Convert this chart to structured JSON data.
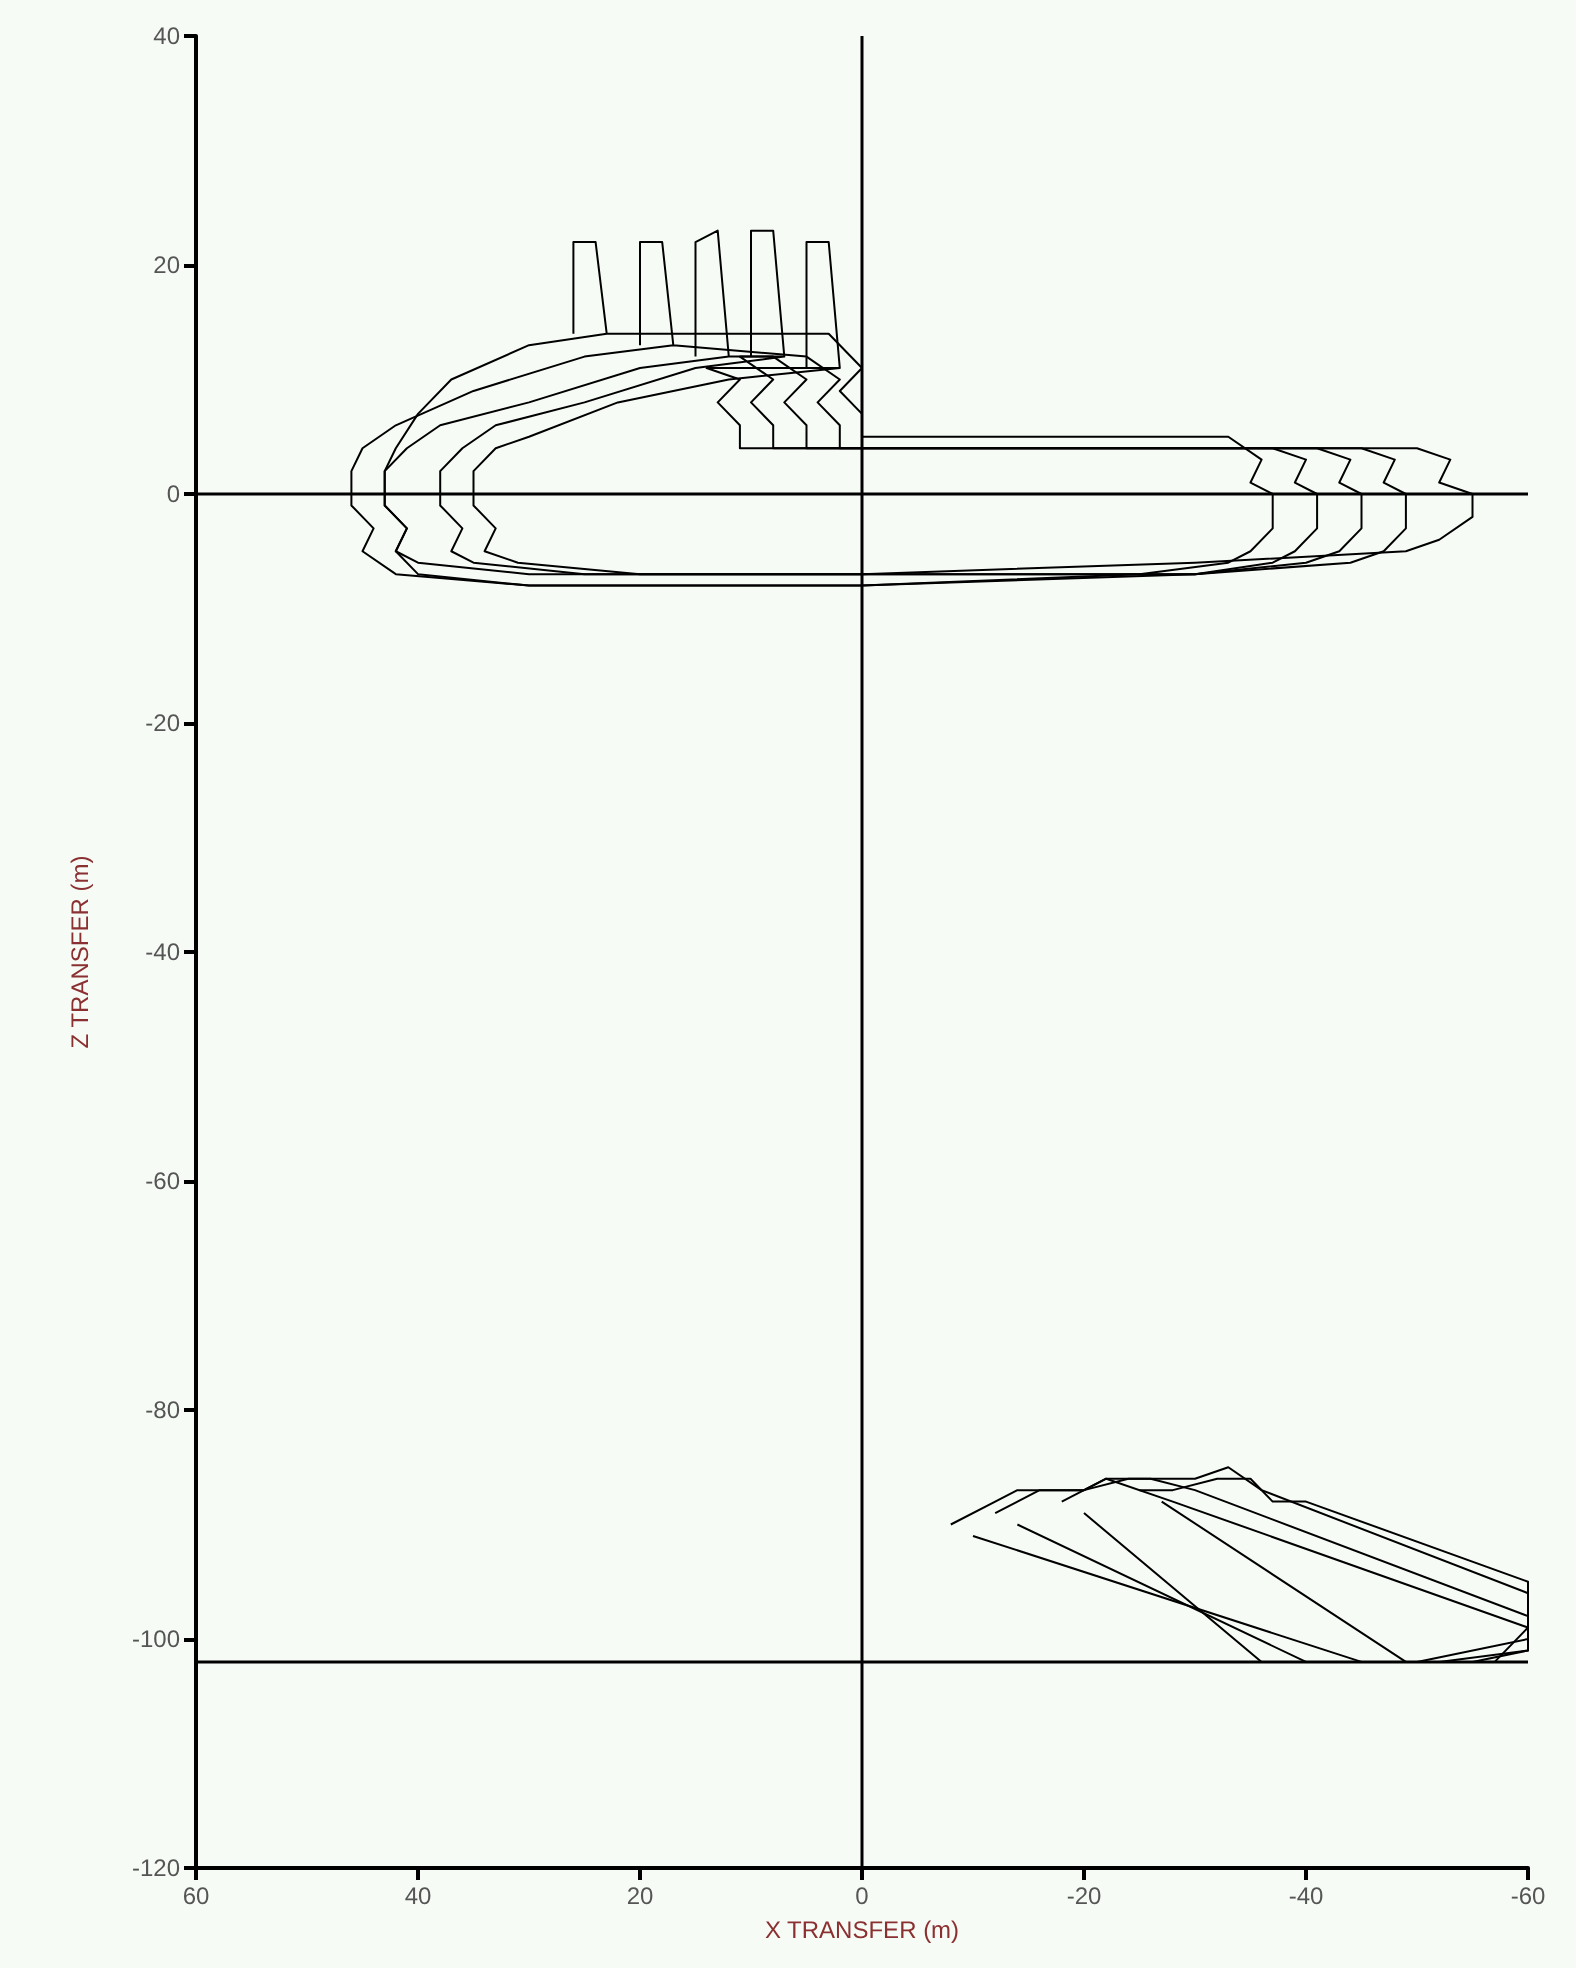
{
  "chart_data": {
    "type": "line",
    "xlabel": "X TRANSFER (m)",
    "ylabel": "Z TRANSFER (m)",
    "xlim": [
      60,
      -60
    ],
    "xticks": [
      60,
      40,
      20,
      0,
      -20,
      -40,
      -60
    ],
    "ylim": [
      -120,
      40
    ],
    "yticks": [
      -120,
      -100,
      -80,
      -60,
      -40,
      -20,
      0,
      20,
      40
    ],
    "grid": false,
    "marker": "none",
    "line_style": "solid",
    "ref_lines": [
      {
        "axis": "x",
        "value": 0,
        "color": "#000000"
      },
      {
        "axis": "y",
        "value": 0,
        "color": "#000000"
      },
      {
        "axis": "y",
        "value": -102,
        "color": "#000000"
      }
    ],
    "series": [
      {
        "color": "#000000",
        "x": [
          15,
          15,
          13,
          12,
          12,
          20,
          30,
          38,
          41,
          43,
          43,
          41,
          42,
          40,
          30,
          0,
          -30,
          -37,
          -39,
          -41,
          -41,
          -39,
          -40,
          -37,
          -10,
          5,
          5,
          7,
          5,
          8,
          12
        ],
        "values": [
          12,
          22,
          23,
          12,
          12,
          11,
          8,
          6,
          4,
          2,
          -1,
          -3,
          -5,
          -6,
          -7,
          -7,
          -7,
          -6,
          -5,
          -3,
          0,
          1,
          3,
          4,
          4,
          4,
          6,
          8,
          10,
          12,
          12
        ]
      },
      {
        "color": "#000000",
        "x": [
          20,
          20,
          18,
          17,
          17,
          25,
          35,
          42,
          45,
          46,
          46,
          44,
          45,
          42,
          30,
          0,
          -30,
          -40,
          -43,
          -45,
          -45,
          -43,
          -44,
          -41,
          -10,
          2,
          2,
          4,
          2,
          5,
          17
        ],
        "values": [
          13,
          22,
          22,
          13,
          13,
          12,
          9,
          6,
          4,
          2,
          -1,
          -3,
          -5,
          -7,
          -8,
          -8,
          -7,
          -6,
          -5,
          -3,
          0,
          1,
          3,
          4,
          4,
          4,
          6,
          8,
          10,
          12,
          13
        ]
      },
      {
        "color": "#000000",
        "x": [
          10,
          10,
          8,
          7,
          7,
          15,
          25,
          33,
          36,
          38,
          38,
          36,
          37,
          35,
          25,
          0,
          -30,
          -44,
          -47,
          -49,
          -49,
          -47,
          -48,
          -45,
          -10,
          8,
          8,
          10,
          8,
          11,
          7
        ],
        "values": [
          12,
          23,
          23,
          12,
          12,
          11,
          8,
          6,
          4,
          2,
          -1,
          -3,
          -5,
          -6,
          -7,
          -7,
          -7,
          -6,
          -5,
          -3,
          0,
          1,
          3,
          4,
          4,
          4,
          6,
          8,
          10,
          12,
          12
        ]
      },
      {
        "color": "#000000",
        "x": [
          5,
          5,
          3,
          2,
          2,
          12,
          22,
          30,
          33,
          35,
          35,
          33,
          34,
          31,
          20,
          0,
          -30,
          -49,
          -52,
          -55,
          -55,
          -52,
          -53,
          -50,
          -10,
          11,
          11,
          13,
          11,
          14,
          2
        ],
        "values": [
          11,
          22,
          22,
          11,
          11,
          10,
          8,
          5,
          4,
          2,
          -1,
          -3,
          -5,
          -6,
          -7,
          -7,
          -6,
          -5,
          -4,
          -2,
          0,
          1,
          3,
          4,
          4,
          4,
          6,
          8,
          10,
          11,
          11
        ]
      },
      {
        "color": "#000000",
        "x": [
          26,
          26,
          24,
          23,
          23,
          30,
          37,
          40,
          42,
          43,
          43,
          41,
          42,
          40,
          30,
          0,
          -25,
          -33,
          -35,
          -37,
          -37,
          -35,
          -36,
          -33,
          -10,
          0,
          0,
          2,
          0,
          3,
          23
        ],
        "values": [
          14,
          22,
          22,
          14,
          14,
          13,
          10,
          7,
          4,
          2,
          -1,
          -3,
          -5,
          -7,
          -8,
          -8,
          -7,
          -6,
          -5,
          -3,
          0,
          1,
          3,
          5,
          5,
          5,
          7,
          9,
          11,
          14,
          14
        ]
      },
      {
        "color": "#000000",
        "x": [
          -8,
          -12,
          -14,
          -20,
          -22,
          -28,
          -60,
          -60,
          -55,
          -45,
          -10
        ],
        "values": [
          -90,
          -88,
          -87,
          -87,
          -86,
          -88,
          -99,
          -101,
          -102,
          -102,
          -91
        ]
      },
      {
        "color": "#000000",
        "x": [
          -12,
          -16,
          -20,
          -24,
          -26,
          -30,
          -60,
          -60,
          -52,
          -40,
          -14
        ],
        "values": [
          -89,
          -87,
          -87,
          -86,
          -86,
          -87,
          -98,
          -101,
          -102,
          -102,
          -90
        ]
      },
      {
        "color": "#000000",
        "x": [
          -18,
          -22,
          -26,
          -30,
          -33,
          -36,
          -60,
          -60,
          -50,
          -36,
          -20
        ],
        "values": [
          -88,
          -86,
          -86,
          -86,
          -85,
          -87,
          -96,
          -100,
          -102,
          -102,
          -89
        ]
      },
      {
        "color": "#000000",
        "x": [
          -25,
          -28,
          -32,
          -35,
          -37,
          -40,
          -60,
          -60,
          -57,
          -49,
          -27
        ],
        "values": [
          -87,
          -87,
          -86,
          -86,
          -88,
          -88,
          -95,
          -99,
          -102,
          -102,
          -88
        ]
      }
    ]
  }
}
